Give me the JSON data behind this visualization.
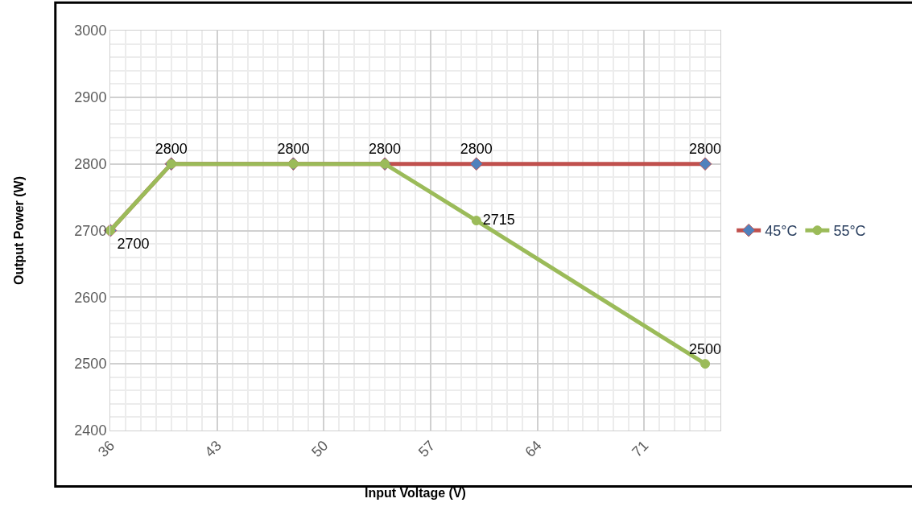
{
  "chart_data": {
    "type": "line",
    "xlabel": "Input Voltage (V)",
    "ylabel": "Output Power (W)",
    "x": [
      36,
      40,
      48,
      54,
      60,
      75
    ],
    "series": [
      {
        "name": "45°C",
        "color": "#c0504d",
        "marker": "diamond",
        "values": [
          2700,
          2800,
          2800,
          2800,
          2800,
          2800
        ],
        "value_labels": [
          "2700",
          "2800",
          "2800",
          "2800",
          "2800",
          "2800"
        ]
      },
      {
        "name": "55°C",
        "color": "#9bbb59",
        "marker": "circle",
        "values": [
          2700,
          2800,
          2800,
          2800,
          2715,
          2500
        ],
        "value_labels": [
          null,
          null,
          null,
          null,
          "2715",
          "2500"
        ]
      }
    ],
    "xlim": [
      36,
      76
    ],
    "xticks": [
      36,
      43,
      50,
      57,
      64,
      71
    ],
    "ylim": [
      2400,
      3000
    ],
    "yticks": [
      2400,
      2500,
      2600,
      2700,
      2800,
      2900,
      3000
    ],
    "grid": true,
    "legend": "right",
    "line_style": "solid"
  }
}
